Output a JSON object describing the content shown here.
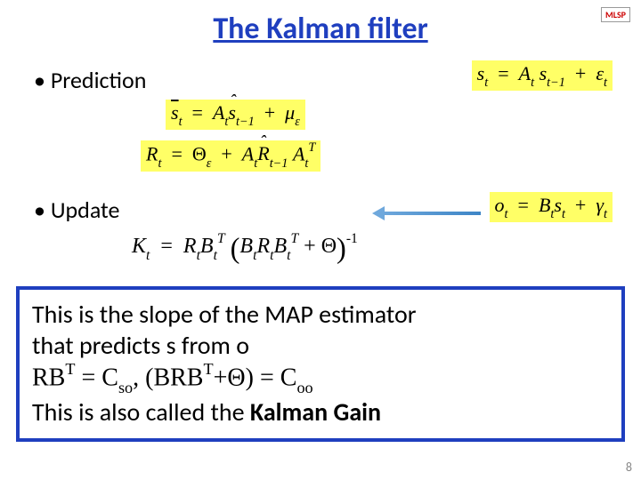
{
  "title": "The Kalman filter",
  "title_color": "#1f3fbf",
  "logo": "MLSP",
  "logo_color_left": "#cc0000",
  "logo_color_right": "#1f3fbf",
  "bullets": {
    "prediction": "Prediction",
    "update": "Update"
  },
  "equations": {
    "state_model": {
      "s": "s",
      "t": "t",
      "eq": "=",
      "A": "A",
      "tm1": "t−1",
      "plus": "+",
      "eps": "ε",
      "highlight": "#ffff66"
    },
    "pred_mean": {
      "sbar": "s̄",
      "t": "t",
      "eq": "=",
      "A": "A",
      "shat": "ŝ",
      "tm1": "t−1",
      "plus": "+",
      "mu": "μ",
      "eps": "ε",
      "highlight": "#ffff66"
    },
    "pred_cov": {
      "R": "R",
      "t": "t",
      "eq": "=",
      "Theta": "Θ",
      "eps": "ε",
      "plus": "+",
      "A": "A",
      "Rhat": "R̂",
      "tm1": "t−1",
      "AT": "T",
      "highlight": "#ffff66"
    },
    "obs_model": {
      "o": "o",
      "t": "t",
      "eq": "=",
      "B": "B",
      "s": "s",
      "plus": "+",
      "gamma": "γ",
      "highlight": "#ffff66"
    },
    "kalman_gain": {
      "K": "K",
      "t": "t",
      "eq": "=",
      "R": "R",
      "B": "B",
      "T": "T",
      "plus": "+",
      "Theta": "Θ",
      "inv": "-1"
    }
  },
  "arrow": {
    "color_from": "#6fa8dc",
    "color_to": "#3d85c6"
  },
  "box": {
    "border_color": "#1f3fbf",
    "line1": "This is the slope of the MAP estimator",
    "line2": "that predicts s from o",
    "line3_pre": "RB",
    "line3_T": "T",
    "line3_mid1": " =  C",
    "line3_so": "so",
    "line3_mid2": ",   (BRB",
    "line3_T2": "T",
    "line3_mid3": "+",
    "line3_theta": "Θ",
    "line3_mid4": ") = C",
    "line3_oo": "oo",
    "line4_a": "This is also called the ",
    "line4_b": "Kalman Gain"
  },
  "page_number": "8",
  "colors": {
    "background": "#ffffff",
    "text": "#000000",
    "highlight": "#ffff66",
    "pagenum": "#888888"
  }
}
